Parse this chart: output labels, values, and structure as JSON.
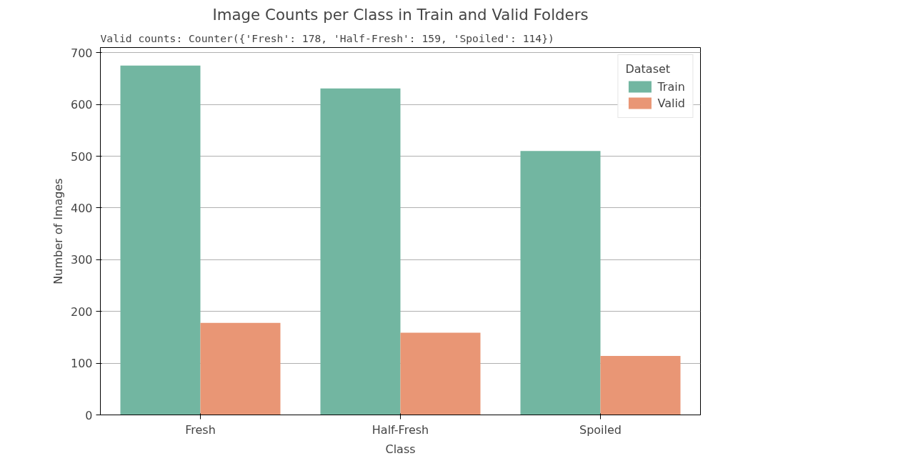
{
  "chart_data": {
    "type": "bar",
    "title": "Image Counts per Class in Train and Valid Folders",
    "annotations": [
      "Valid counts: Counter({'Fresh': 178, 'Half-Fresh': 159, 'Spoiled': 114})"
    ],
    "xlabel": "Class",
    "ylabel": "Number of Images",
    "categories": [
      "Fresh",
      "Half-Fresh",
      "Spoiled"
    ],
    "legend_title": "Dataset",
    "series": [
      {
        "name": "Train",
        "color": "#72b6a1",
        "values": [
          675,
          631,
          510
        ]
      },
      {
        "name": "Valid",
        "color": "#e99675",
        "values": [
          178,
          159,
          114
        ]
      }
    ],
    "ylim": [
      0,
      710
    ],
    "yticks": [
      0,
      100,
      200,
      300,
      400,
      500,
      600,
      700
    ],
    "grid": "y",
    "legend": "top right"
  }
}
